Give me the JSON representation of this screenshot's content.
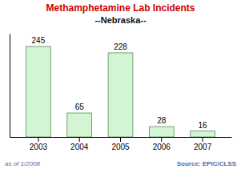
{
  "chart_data": {
    "type": "bar",
    "title": "Methamphetamine Lab Incidents",
    "subtitle": "--Nebraska--",
    "categories": [
      "2003",
      "2004",
      "2005",
      "2006",
      "2007"
    ],
    "values": [
      245,
      65,
      228,
      28,
      16
    ],
    "color": "#d4f5d4",
    "ylim": [
      0,
      280
    ],
    "data_labels": true,
    "tick_labels": "x",
    "annotations": [
      "as of 1/2008",
      "Source: EPIC/CLSS"
    ]
  }
}
